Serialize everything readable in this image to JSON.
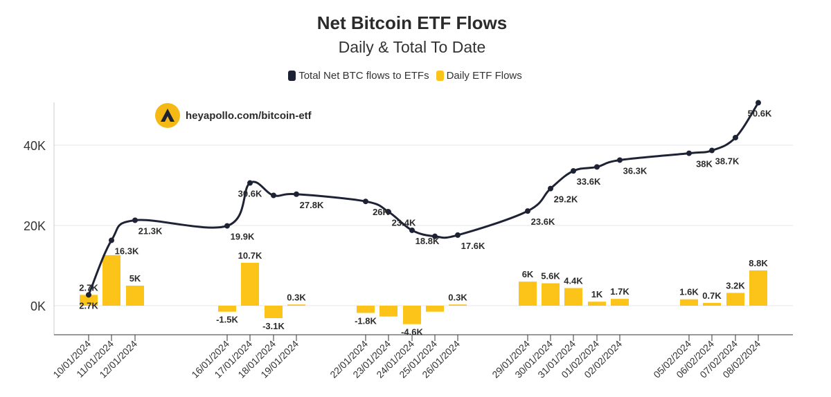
{
  "chart_data": {
    "type": "bar+line",
    "title": "Net Bitcoin ETF Flows",
    "subtitle": "Daily & Total To Date",
    "categories": [
      "10/01/2024",
      "11/01/2024",
      "12/01/2024",
      "16/01/2024",
      "17/01/2024",
      "18/01/2024",
      "19/01/2024",
      "22/01/2024",
      "23/01/2024",
      "24/01/2024",
      "25/01/2024",
      "26/01/2024",
      "29/01/2024",
      "30/01/2024",
      "31/01/2024",
      "01/02/2024",
      "02/02/2024",
      "05/02/2024",
      "06/02/2024",
      "07/02/2024",
      "08/02/2024"
    ],
    "series": [
      {
        "name": "Total Net BTC flows to ETFs",
        "type": "line",
        "color": "#1e2235",
        "values": [
          2700,
          16300,
          21300,
          19900,
          30600,
          27500,
          27800,
          26000,
          23400,
          18800,
          17300,
          17600,
          23600,
          29200,
          33600,
          34600,
          36300,
          38000,
          38700,
          41900,
          50600
        ],
        "labels": [
          "2.7K",
          "16.3K",
          "21.3K",
          "19.9K",
          "30.6K",
          "",
          "27.8K",
          "26K",
          "23.4K",
          "18.8K",
          "",
          "17.6K",
          "23.6K",
          "29.2K",
          "33.6K",
          "",
          "36.3K",
          "38K",
          "38.7K",
          "",
          "50.6K"
        ]
      },
      {
        "name": "Daily ETF Flows",
        "type": "bar",
        "color": "#fcc419",
        "values": [
          2700,
          12600,
          5000,
          -1500,
          10700,
          -3100,
          300,
          -1800,
          -2700,
          -4600,
          -1500,
          300,
          6000,
          5600,
          4400,
          1000,
          1700,
          1600,
          700,
          3200,
          8800
        ],
        "labels": [
          "2.7K",
          "",
          "5K",
          "-1.5K",
          "10.7K",
          "-3.1K",
          "0.3K",
          "-1.8K",
          "",
          "-4.6K",
          "",
          "0.3K",
          "6K",
          "5.6K",
          "4.4K",
          "1K",
          "1.7K",
          "1.6K",
          "0.7K",
          "3.2K",
          "8.8K"
        ]
      }
    ],
    "yticks": [
      0,
      20000,
      40000
    ],
    "ytick_labels": [
      "0K",
      "20K",
      "40K"
    ],
    "ylim": [
      -7500,
      52000
    ],
    "grid": true,
    "legend_position": "top-center"
  },
  "watermark": {
    "text": "heyapollo.com/bitcoin-etf",
    "icon": "apollo-logo-icon"
  }
}
